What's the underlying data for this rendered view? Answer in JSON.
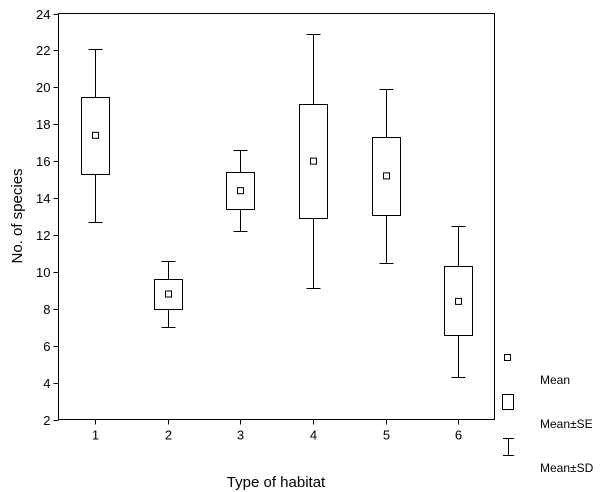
{
  "chart_data": {
    "type": "box",
    "title": "",
    "xlabel": "Type of habitat",
    "ylabel": "No. of species",
    "ylim": [
      2,
      24
    ],
    "yticks": [
      2,
      4,
      6,
      8,
      10,
      12,
      14,
      16,
      18,
      20,
      22,
      24
    ],
    "categories": [
      "1",
      "2",
      "3",
      "4",
      "5",
      "6"
    ],
    "boxes": [
      {
        "category": "1",
        "mean": 17.4,
        "se_low": 15.3,
        "se_high": 19.5,
        "sd_low": 12.7,
        "sd_high": 22.1
      },
      {
        "category": "2",
        "mean": 8.8,
        "se_low": 8.0,
        "se_high": 9.6,
        "sd_low": 7.0,
        "sd_high": 10.6
      },
      {
        "category": "3",
        "mean": 14.4,
        "se_low": 13.4,
        "se_high": 15.4,
        "sd_low": 12.2,
        "sd_high": 16.6
      },
      {
        "category": "4",
        "mean": 16.0,
        "se_low": 12.9,
        "se_high": 19.1,
        "sd_low": 9.1,
        "sd_high": 22.9
      },
      {
        "category": "5",
        "mean": 15.2,
        "se_low": 13.1,
        "se_high": 17.3,
        "sd_low": 10.5,
        "sd_high": 19.9
      },
      {
        "category": "6",
        "mean": 8.4,
        "se_low": 6.6,
        "se_high": 10.3,
        "sd_low": 4.3,
        "sd_high": 12.5
      }
    ],
    "legend": {
      "position": "right",
      "items": [
        {
          "symbol": "mean",
          "label": "Mean"
        },
        {
          "symbol": "box",
          "label": "Mean±SE"
        },
        {
          "symbol": "whisker",
          "label": "Mean±SD"
        }
      ]
    },
    "grid": false
  }
}
